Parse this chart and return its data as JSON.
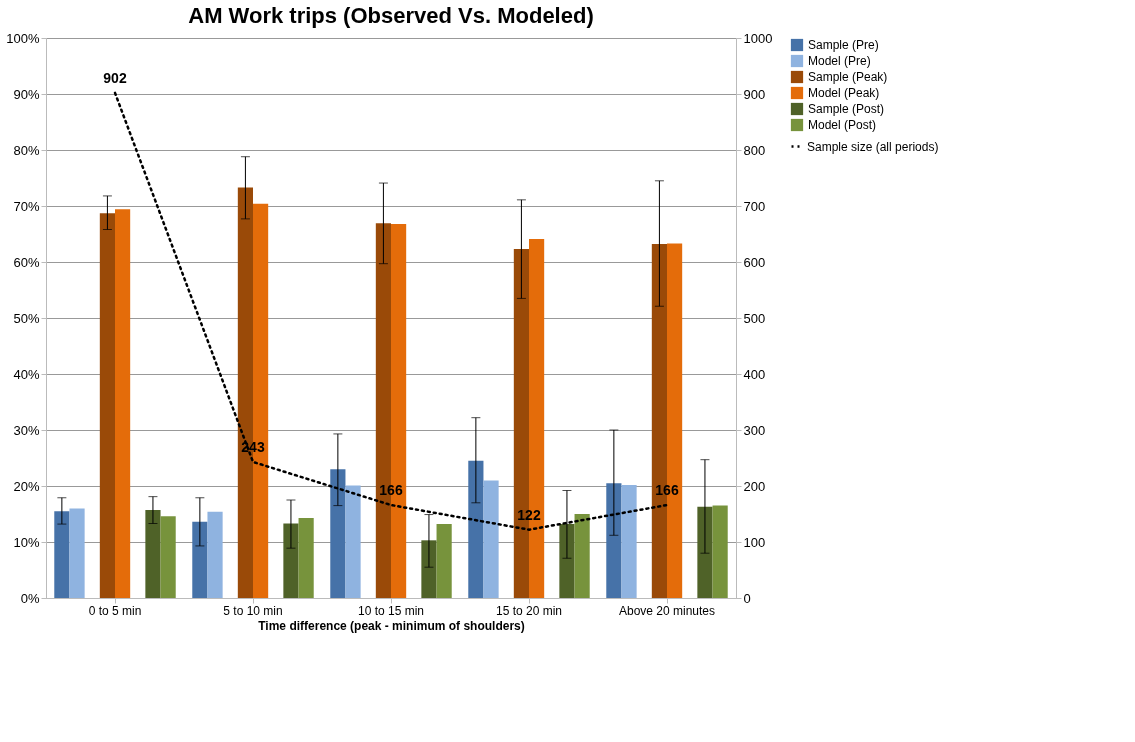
{
  "chart_data": {
    "type": "bar",
    "title": "AM Work trips (Observed Vs. Modeled)",
    "xlabel": "Time difference (peak - minimum of shoulders)",
    "categories": [
      "0 to 5 min",
      "5 to 10 min",
      "10 to 15 min",
      "15 to 20 min",
      "Above 20 minutes"
    ],
    "series": [
      {
        "name": "Sample (Pre)",
        "color": "#4672a8",
        "values": [
          15.5,
          13.6,
          23.0,
          24.5,
          20.5
        ],
        "errors": [
          [
            13.2,
            17.9
          ],
          [
            9.3,
            17.9
          ],
          [
            16.5,
            29.3
          ],
          [
            17.0,
            32.2
          ],
          [
            11.2,
            30.0
          ]
        ]
      },
      {
        "name": "Model (Pre)",
        "color": "#8fb3e0",
        "values": [
          16.0,
          15.4,
          20.1,
          21.0,
          20.2
        ]
      },
      {
        "name": "Sample (Peak)",
        "color": "#9a4a08",
        "values": [
          68.7,
          73.3,
          66.9,
          62.3,
          63.2
        ],
        "errors": [
          [
            65.8,
            71.8
          ],
          [
            67.7,
            78.8
          ],
          [
            59.7,
            74.1
          ],
          [
            53.5,
            71.1
          ],
          [
            52.1,
            74.5
          ]
        ]
      },
      {
        "name": "Model (Peak)",
        "color": "#e46c0a",
        "values": [
          69.4,
          70.4,
          66.8,
          64.1,
          63.3
        ]
      },
      {
        "name": "Sample (Post)",
        "color": "#4f6228",
        "values": [
          15.7,
          13.3,
          10.3,
          13.2,
          16.3
        ],
        "errors": [
          [
            13.3,
            18.1
          ],
          [
            8.9,
            17.5
          ],
          [
            5.5,
            14.9
          ],
          [
            7.1,
            19.2
          ],
          [
            8.0,
            24.7
          ]
        ]
      },
      {
        "name": "Model (Post)",
        "color": "#77933c",
        "values": [
          14.6,
          14.3,
          13.2,
          15.0,
          16.5
        ]
      },
      {
        "name": "Sample size (all periods)",
        "type": "line",
        "axis": "y2",
        "color": "#000000",
        "line_style": "dotted",
        "marker": "none",
        "values": [
          902,
          243,
          166,
          122,
          166
        ],
        "value_labels": [
          "902",
          "243",
          "166",
          "122",
          "166"
        ]
      }
    ],
    "ylim": [
      0,
      100
    ],
    "yticks": [
      {
        "value": 0,
        "label": "0%"
      },
      {
        "value": 10,
        "label": "10%"
      },
      {
        "value": 20,
        "label": "20%"
      },
      {
        "value": 30,
        "label": "30%"
      },
      {
        "value": 40,
        "label": "40%"
      },
      {
        "value": 50,
        "label": "50%"
      },
      {
        "value": 60,
        "label": "60%"
      },
      {
        "value": 70,
        "label": "70%"
      },
      {
        "value": 80,
        "label": "80%"
      },
      {
        "value": 90,
        "label": "90%"
      },
      {
        "value": 100,
        "label": "100%"
      }
    ],
    "y2lim": [
      0,
      1000
    ],
    "y2ticks": [
      0,
      100,
      200,
      300,
      400,
      500,
      600,
      700,
      800,
      900,
      1000
    ],
    "grid": "y",
    "legend": "right"
  }
}
